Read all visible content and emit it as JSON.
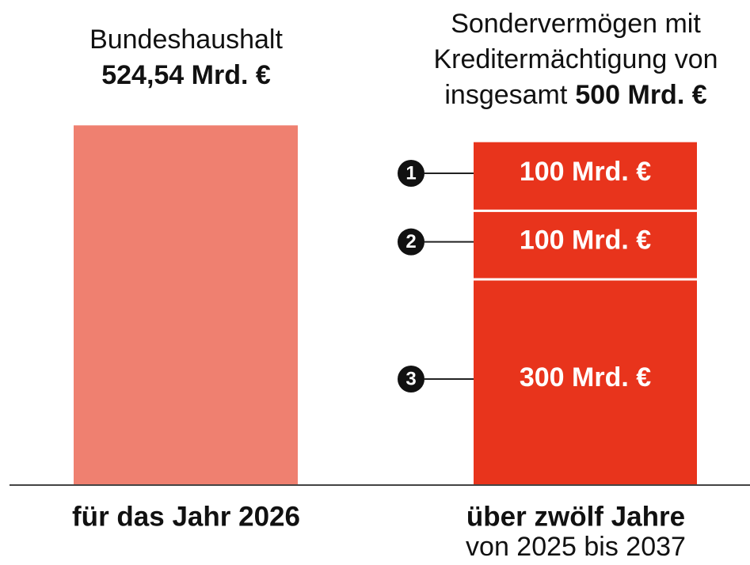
{
  "chart_data": {
    "type": "bar",
    "ylim": [
      0,
      525
    ],
    "bars": [
      {
        "label_lines": [
          "Bundeshaushalt"
        ],
        "value": 524.54,
        "value_label": "524,54 Mrd. €",
        "color": "#ef8070",
        "caption": "für das Jahr 2026"
      },
      {
        "label_lines": [
          "Sondervermögen mit",
          "Kreditermächtigung von",
          "insgesamt"
        ],
        "total": 500,
        "total_label": "500 Mrd. €",
        "color": "#e8341c",
        "caption": "über zwölf Jahre",
        "subcaption": "von 2025 bis 2037",
        "series": [
          {
            "name": "1",
            "values": [
              100
            ],
            "value_labels": [
              "100 Mrd. €"
            ]
          },
          {
            "name": "2",
            "values": [
              100
            ],
            "value_labels": [
              "100 Mrd. €"
            ]
          },
          {
            "name": "3",
            "values": [
              300
            ],
            "value_labels": [
              "300 Mrd. €"
            ]
          }
        ]
      }
    ]
  }
}
